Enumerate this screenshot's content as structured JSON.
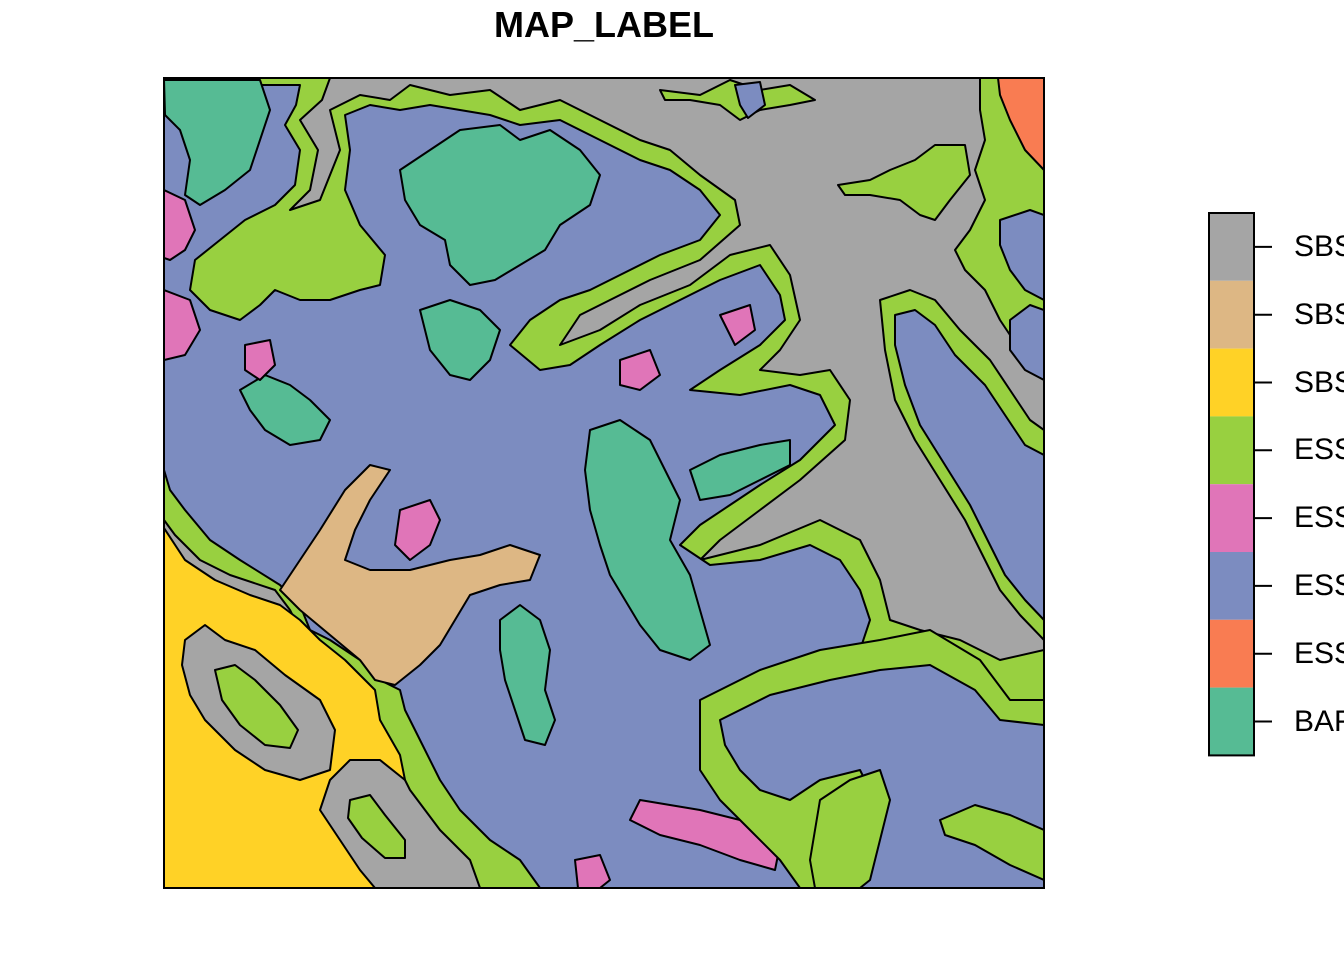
{
  "title": "MAP_LABEL",
  "legend": [
    {
      "label": "SBS",
      "color": "#A5A5A5"
    },
    {
      "label": "SBS",
      "color": "#DDB784"
    },
    {
      "label": "SBS",
      "color": "#FFD226"
    },
    {
      "label": "ESS",
      "color": "#98D040"
    },
    {
      "label": "ESS",
      "color": "#E075B8"
    },
    {
      "label": "ESS",
      "color": "#7C8CC0"
    },
    {
      "label": "ESS",
      "color": "#F97C52"
    },
    {
      "label": "BAF",
      "color": "#56BB94"
    }
  ]
}
